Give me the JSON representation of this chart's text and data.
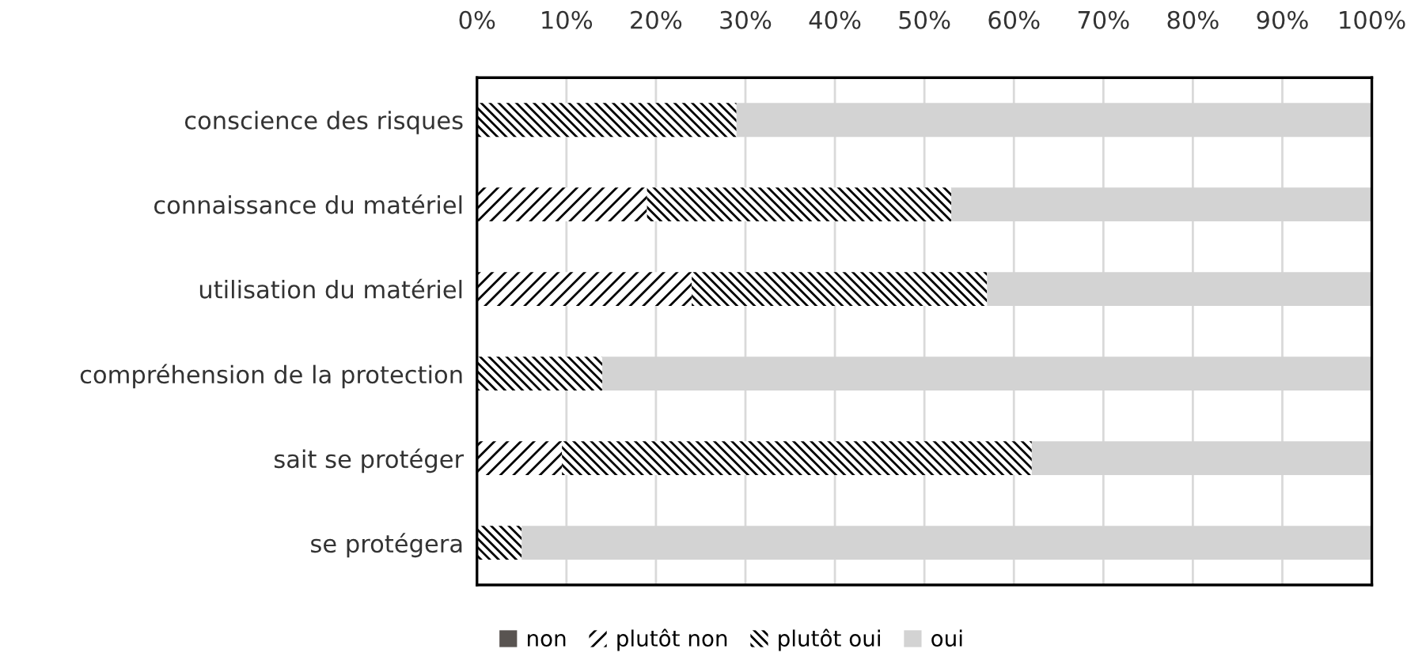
{
  "chart_data": {
    "type": "bar",
    "orientation": "horizontal",
    "stacked": true,
    "categories": [
      "conscience des risques",
      "connaissance du matériel",
      "utilisation du matériel",
      "compréhension de la protection",
      "sait se protéger",
      "se protégera"
    ],
    "series": [
      {
        "name": "non",
        "color": "#595451",
        "values": [
          0,
          0,
          0,
          0,
          0,
          0
        ]
      },
      {
        "name": "plutôt non",
        "color": "#000000",
        "values": [
          0,
          19,
          24,
          0,
          9.5,
          0
        ]
      },
      {
        "name": "plutôt oui",
        "color": "#000000",
        "values": [
          29,
          34,
          33,
          14,
          52.5,
          5
        ]
      },
      {
        "name": "oui",
        "color": "#d3d3d3",
        "values": [
          71,
          47,
          43,
          86,
          38,
          95
        ]
      }
    ],
    "xlim": [
      0,
      100
    ],
    "xticks": [
      {
        "value": 0,
        "label": "0%"
      },
      {
        "value": 10,
        "label": "10%"
      },
      {
        "value": 20,
        "label": "20%"
      },
      {
        "value": 30,
        "label": "30%"
      },
      {
        "value": 40,
        "label": "40%"
      },
      {
        "value": 50,
        "label": "50%"
      },
      {
        "value": 60,
        "label": "60%"
      },
      {
        "value": 70,
        "label": "70%"
      },
      {
        "value": 80,
        "label": "80%"
      },
      {
        "value": 90,
        "label": "90%"
      },
      {
        "value": 100,
        "label": "100%"
      }
    ],
    "grid": "x",
    "legend": "bottom"
  }
}
